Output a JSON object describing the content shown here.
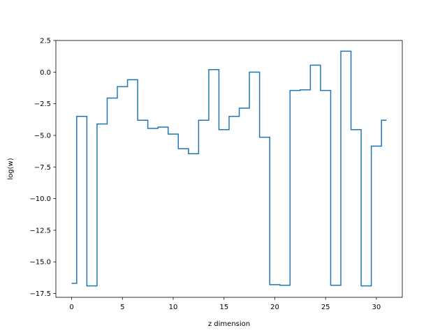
{
  "chart_data": {
    "type": "line",
    "drawstyle": "steps-mid",
    "xlabel": "z dimension",
    "ylabel": "log(w)",
    "xlim": [
      -1.55,
      32.55
    ],
    "ylim": [
      -17.8,
      2.5
    ],
    "xticks": [
      0,
      5,
      10,
      15,
      20,
      25,
      30
    ],
    "xtick_labels": [
      "0",
      "5",
      "10",
      "15",
      "20",
      "25",
      "30"
    ],
    "yticks": [
      2.5,
      0.0,
      -2.5,
      -5.0,
      -7.5,
      -10.0,
      -12.5,
      -15.0,
      -17.5
    ],
    "ytick_labels": [
      "2.5",
      "0.0",
      "−2.5",
      "−5.0",
      "−7.5",
      "−10.0",
      "−12.5",
      "−15.0",
      "−17.5"
    ],
    "grid": false,
    "color": "#1f77b4",
    "series": [
      {
        "x": [
          0,
          1,
          2,
          3,
          4,
          5,
          6,
          7,
          8,
          9,
          10,
          11,
          12,
          13,
          14,
          15,
          16,
          17,
          18,
          19,
          20,
          21,
          22,
          23,
          24,
          25,
          26,
          27,
          28,
          29,
          30,
          31
        ],
        "y": [
          -16.7,
          -3.5,
          -16.9,
          -4.1,
          -2.05,
          -1.15,
          -0.6,
          -3.8,
          -4.45,
          -4.35,
          -4.9,
          -6.05,
          -6.45,
          -3.8,
          0.2,
          -4.55,
          -3.5,
          -2.85,
          0.0,
          -5.15,
          -16.8,
          -16.85,
          -1.45,
          -1.4,
          0.55,
          -1.45,
          -16.85,
          1.65,
          -4.55,
          -16.9,
          -5.85,
          -3.8
        ]
      }
    ]
  }
}
